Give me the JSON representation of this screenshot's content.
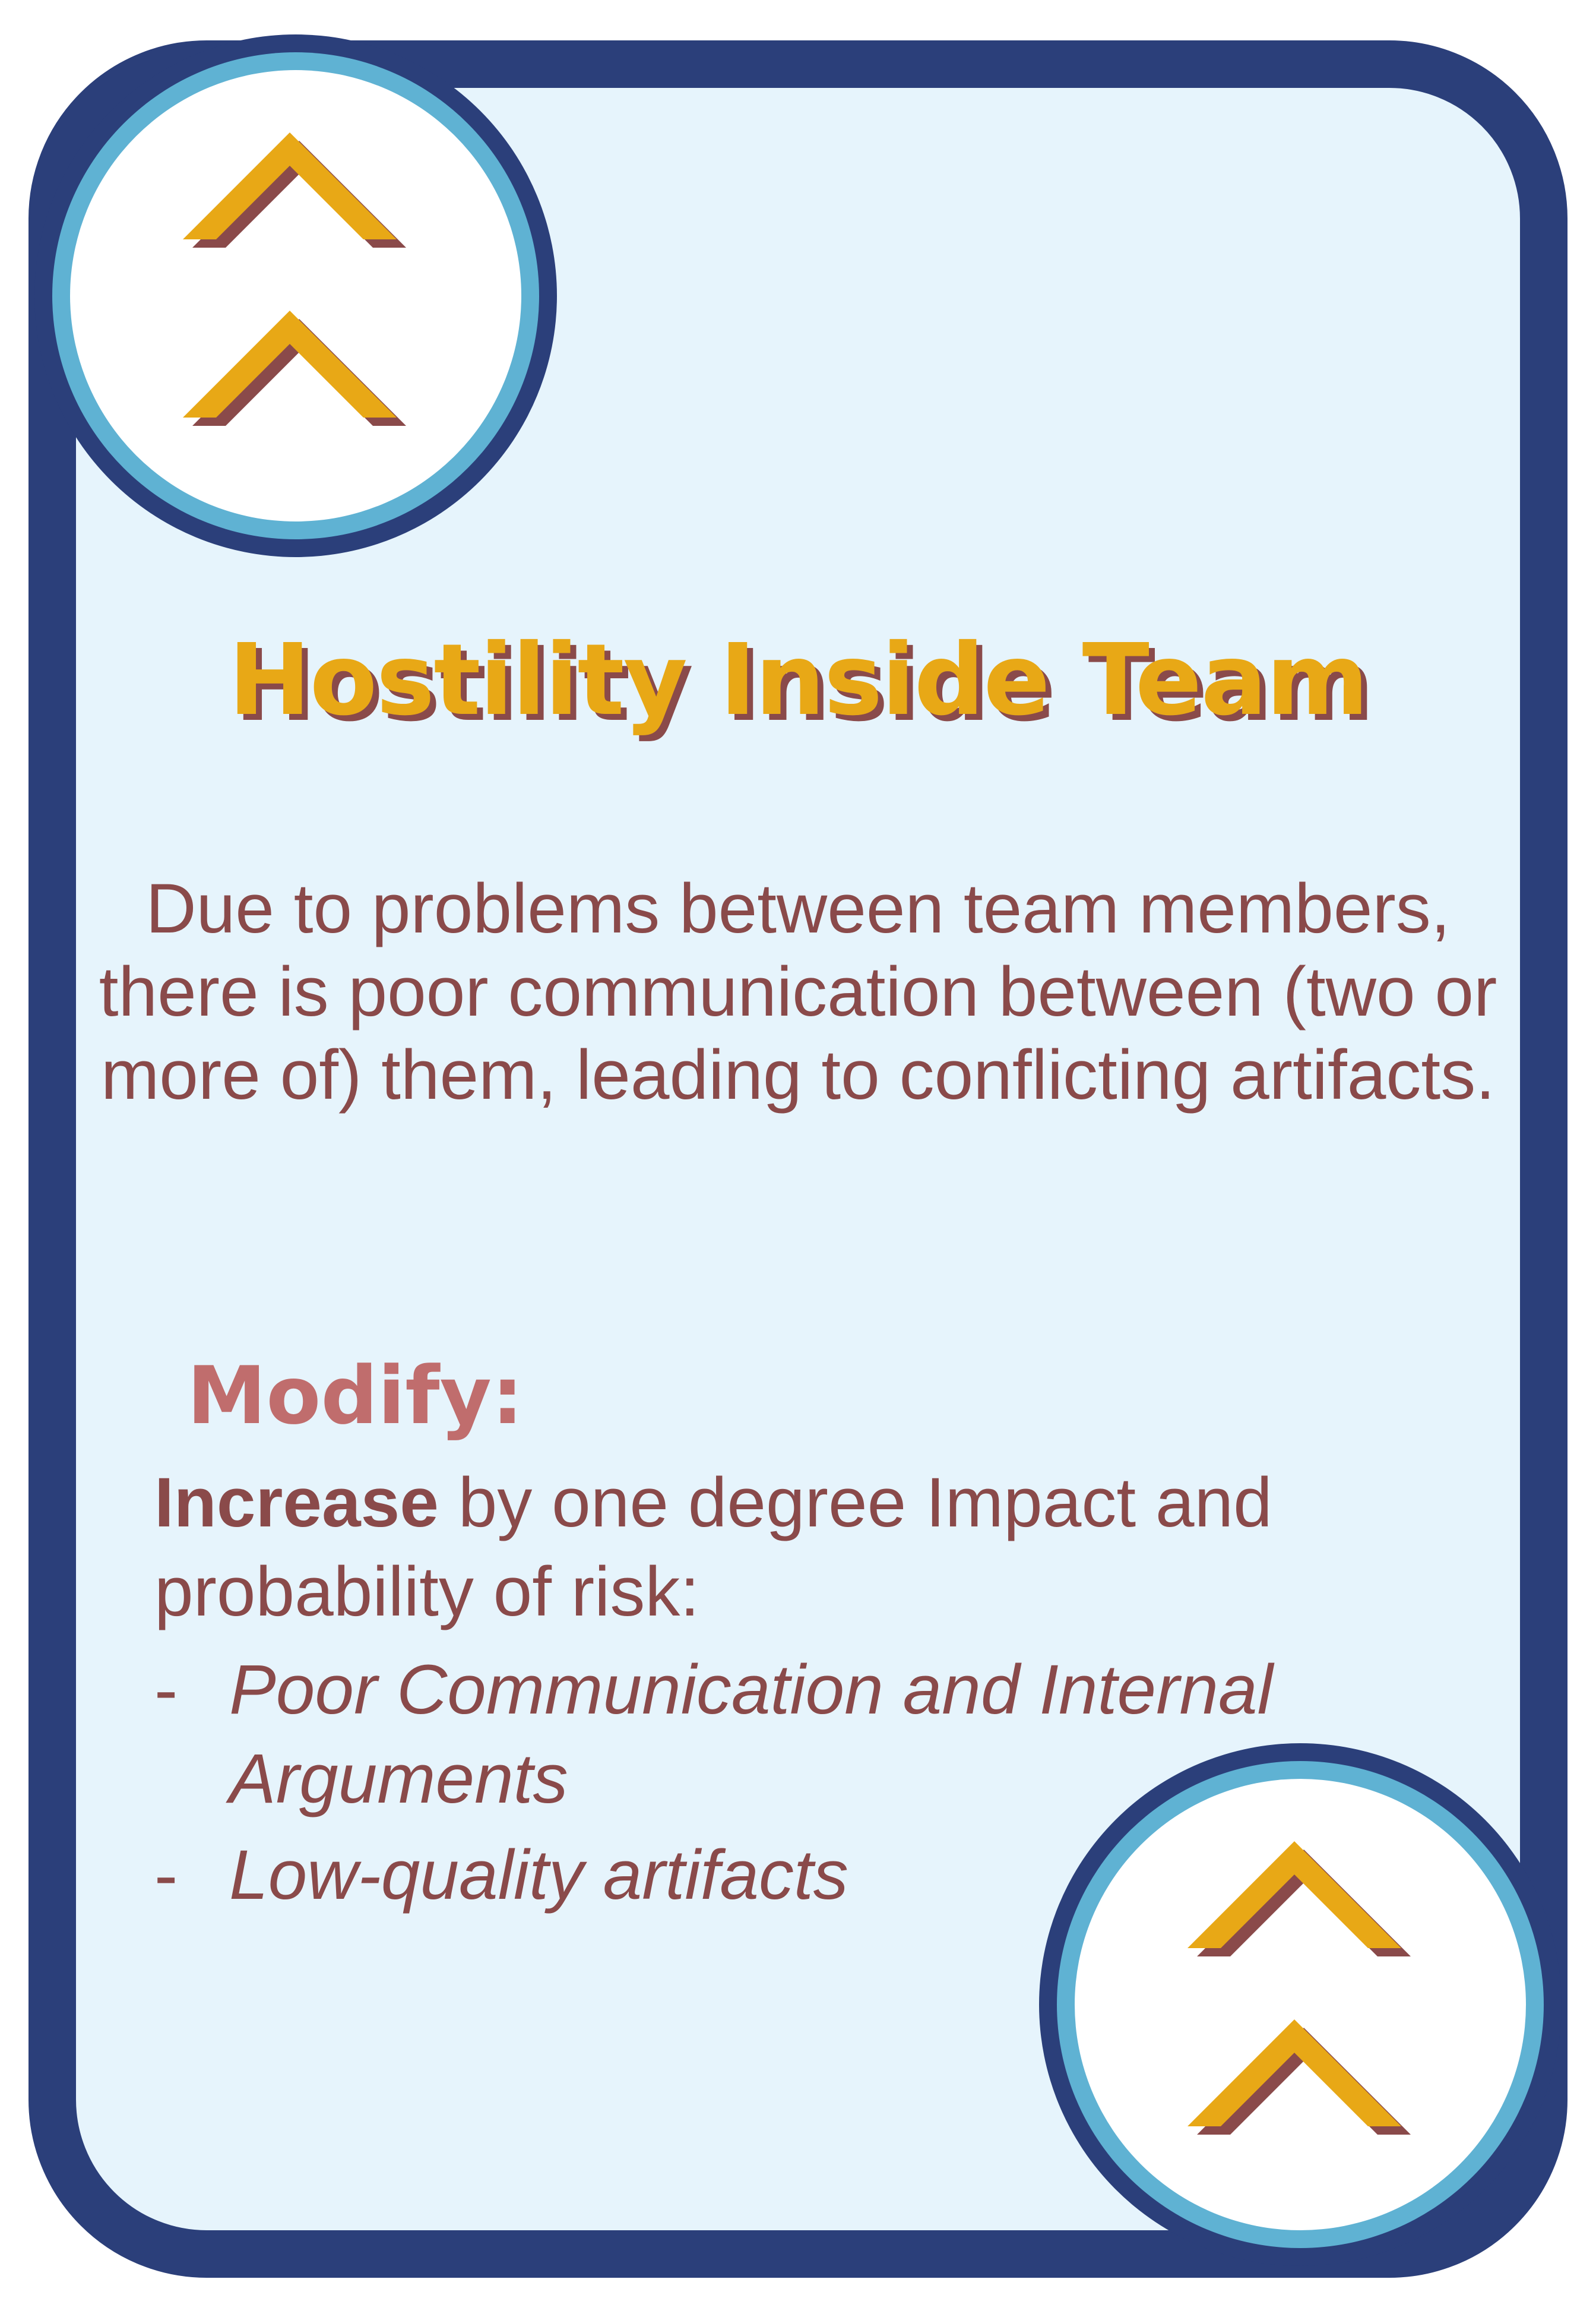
{
  "card": {
    "title": "Hostility Inside Team",
    "description": "Due to problems between team members, there is poor communication between (two or more of) them, leading to conflicting artifacts.",
    "modify": {
      "heading": "Modify:",
      "action_bold": "Increase",
      "action_rest": " by one degree Impact and probability of risk:",
      "bullet_marker": "-",
      "risks": [
        "Poor Communication and Internal Arguments",
        "Low-quality artifacts"
      ]
    }
  },
  "icons": {
    "top_badge": "double-chevron-up-icon",
    "bottom_badge": "double-chevron-up-icon"
  },
  "colors": {
    "border": "#2b3f7a",
    "ring": "#5fb2d3",
    "background": "#e6f4fc",
    "accent_gold": "#e8a816",
    "text_brown": "#8a4a4a",
    "heading_rose": "#c06d6d"
  }
}
